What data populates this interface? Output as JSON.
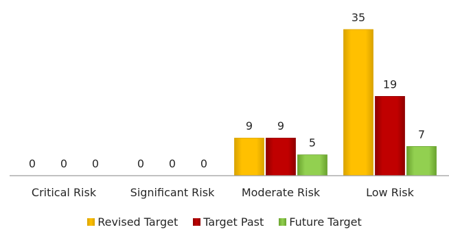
{
  "chart_data": {
    "type": "bar",
    "categories": [
      "Critical Risk",
      "Significant Risk",
      "Moderate Risk",
      "Low Risk"
    ],
    "series": [
      {
        "name": "Revised Target",
        "values": [
          0,
          0,
          9,
          35
        ],
        "color": "#FFC000",
        "shade": "#D9A300"
      },
      {
        "name": "Target Past",
        "values": [
          0,
          0,
          9,
          19
        ],
        "color": "#C00000",
        "shade": "#8F0000"
      },
      {
        "name": "Future Target",
        "values": [
          0,
          0,
          5,
          7
        ],
        "color": "#92D050",
        "shade": "#6AA32F"
      }
    ],
    "data_labels": true,
    "legend_position": "bottom",
    "grid": false,
    "ylim": [
      0,
      35
    ]
  }
}
